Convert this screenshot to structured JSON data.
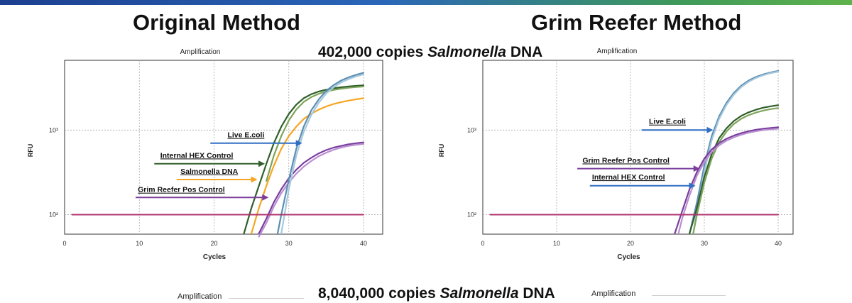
{
  "titles": {
    "left": "Original Method",
    "right": "Grim Reefer Method"
  },
  "captions": {
    "top": {
      "pre": "402,000 copies ",
      "italic": "Salmonella",
      "post": " DNA"
    },
    "bottom": {
      "pre": "8,040,000 copies ",
      "italic": "Salmonella",
      "post": " DNA"
    }
  },
  "bottom_labels": {
    "left": "Amplification",
    "right": "Amplification"
  },
  "colors": {
    "green": "#2f5f2a",
    "lightgreen": "#7ea35a",
    "orange": "#f5a623",
    "purple": "#7a3e9e",
    "lightpurple": "#b98fd0",
    "blue": "#5b8fb4",
    "lightblue": "#a8c8dc",
    "baseline": "#b0336e",
    "arrowblue": "#2e6fc4"
  },
  "chart_data": [
    {
      "type": "line",
      "title": "Amplification",
      "xlabel": "Cycles",
      "ylabel": "RFU",
      "xlim": [
        0,
        40
      ],
      "ylim": [
        60,
        5500
      ],
      "yscale": "log",
      "xticks": [
        0,
        10,
        20,
        30,
        40
      ],
      "yticks": [
        {
          "v": 100,
          "label": "10²"
        },
        {
          "v": 1000,
          "label": "10³"
        }
      ],
      "grid": true,
      "series": [
        {
          "color": "green",
          "x": [
            24,
            25,
            26,
            27,
            28,
            29,
            30,
            31,
            32,
            33,
            34,
            35,
            36,
            37,
            38,
            39,
            40
          ],
          "y": [
            60,
            120,
            220,
            400,
            700,
            1100,
            1550,
            2000,
            2380,
            2650,
            2850,
            3000,
            3120,
            3200,
            3270,
            3330,
            3380
          ]
        },
        {
          "color": "lightgreen",
          "x": [
            27,
            28,
            29,
            30,
            31,
            32,
            33,
            34,
            35,
            36,
            37,
            38,
            39,
            40
          ],
          "y": [
            250,
            500,
            850,
            1300,
            1750,
            2150,
            2450,
            2680,
            2850,
            2980,
            3080,
            3160,
            3220,
            3270
          ]
        },
        {
          "color": "orange",
          "x": [
            25,
            26,
            27,
            28,
            29,
            30,
            31,
            32,
            33,
            34,
            35,
            36,
            37,
            38,
            39,
            40
          ],
          "y": [
            60,
            120,
            220,
            380,
            600,
            850,
            1100,
            1350,
            1560,
            1740,
            1900,
            2030,
            2140,
            2230,
            2310,
            2380
          ]
        },
        {
          "color": "purple",
          "x": [
            26,
            27,
            28,
            29,
            30,
            31,
            32,
            33,
            34,
            35,
            36,
            37,
            38,
            39,
            40
          ],
          "y": [
            60,
            90,
            140,
            200,
            270,
            340,
            410,
            470,
            530,
            580,
            620,
            650,
            680,
            700,
            715
          ]
        },
        {
          "color": "lightpurple",
          "x": [
            26,
            27,
            28,
            29,
            30,
            31,
            32,
            33,
            34,
            35,
            36,
            37,
            38,
            39,
            40
          ],
          "y": [
            55,
            80,
            125,
            180,
            240,
            305,
            370,
            430,
            490,
            540,
            585,
            620,
            650,
            670,
            685
          ]
        },
        {
          "color": "blue",
          "x": [
            28.5,
            29,
            30,
            31,
            32,
            33,
            34,
            35,
            36,
            37,
            38,
            39,
            40
          ],
          "y": [
            60,
            100,
            260,
            600,
            1100,
            1700,
            2300,
            2900,
            3400,
            3850,
            4200,
            4500,
            4750
          ]
        },
        {
          "color": "lightblue",
          "x": [
            29,
            30,
            31,
            32,
            33,
            34,
            35,
            36,
            37,
            38,
            39,
            40
          ],
          "y": [
            60,
            200,
            500,
            950,
            1500,
            2100,
            2700,
            3200,
            3650,
            4000,
            4300,
            4550
          ]
        },
        {
          "color": "baseline",
          "x": [
            1,
            40
          ],
          "y": [
            100,
            100
          ]
        }
      ],
      "annotations": [
        {
          "text": "Live E.coli",
          "x0": 19.5,
          "x1": 31.8,
          "y": 700,
          "tx": 21.8,
          "ty": 820,
          "color": "arrowblue"
        },
        {
          "text": "Internal HEX Control",
          "x0": 12,
          "x1": 26.8,
          "y": 400,
          "tx": 12.8,
          "ty": 470,
          "color": "green"
        },
        {
          "text": "Salmonella DNA",
          "x0": 15,
          "x1": 25.8,
          "y": 260,
          "tx": 15.5,
          "ty": 305,
          "color": "orange"
        },
        {
          "text": "Grim Reefer Pos Control",
          "x0": 9.5,
          "x1": 27.3,
          "y": 160,
          "tx": 9.8,
          "ty": 185,
          "color": "purple"
        }
      ]
    },
    {
      "type": "line",
      "title": "Amplification",
      "xlabel": "Cycles",
      "ylabel": "RFU",
      "xlim": [
        0,
        40
      ],
      "ylim": [
        60,
        5500
      ],
      "yscale": "log",
      "xticks": [
        0,
        10,
        20,
        30,
        40
      ],
      "yticks": [
        {
          "v": 100,
          "label": "10²"
        },
        {
          "v": 1000,
          "label": "10³"
        }
      ],
      "grid": true,
      "series": [
        {
          "color": "blue",
          "x": [
            28,
            29,
            30,
            31,
            32,
            33,
            34,
            35,
            36,
            37,
            38,
            39,
            40
          ],
          "y": [
            60,
            140,
            380,
            850,
            1450,
            2100,
            2750,
            3350,
            3850,
            4250,
            4550,
            4800,
            5000
          ]
        },
        {
          "color": "lightblue",
          "x": [
            28.5,
            29,
            30,
            31,
            32,
            33,
            34,
            35,
            36,
            37,
            38,
            39,
            40
          ],
          "y": [
            60,
            110,
            320,
            760,
            1350,
            1980,
            2620,
            3220,
            3720,
            4130,
            4450,
            4700,
            4900
          ]
        },
        {
          "color": "green",
          "x": [
            28,
            29,
            30,
            31,
            32,
            33,
            34,
            35,
            36,
            37,
            38,
            39,
            40
          ],
          "y": [
            60,
            120,
            280,
            520,
            800,
            1050,
            1280,
            1470,
            1620,
            1740,
            1840,
            1910,
            1970
          ]
        },
        {
          "color": "lightgreen",
          "x": [
            28.5,
            29,
            30,
            31,
            32,
            33,
            34,
            35,
            36,
            37,
            38,
            39,
            40
          ],
          "y": [
            60,
            100,
            240,
            460,
            720,
            960,
            1180,
            1360,
            1500,
            1610,
            1700,
            1770,
            1820
          ]
        },
        {
          "color": "purple",
          "x": [
            26,
            27,
            28,
            29,
            30,
            31,
            32,
            33,
            34,
            35,
            36,
            37,
            38,
            39,
            40
          ],
          "y": [
            60,
            110,
            200,
            320,
            460,
            590,
            700,
            790,
            860,
            920,
            970,
            1010,
            1040,
            1060,
            1080
          ]
        },
        {
          "color": "lightpurple",
          "x": [
            26.5,
            27,
            28,
            29,
            30,
            31,
            32,
            33,
            34,
            35,
            36,
            37,
            38,
            39,
            40
          ],
          "y": [
            60,
            90,
            170,
            290,
            420,
            550,
            660,
            750,
            820,
            880,
            930,
            970,
            1000,
            1020,
            1040
          ]
        },
        {
          "color": "baseline",
          "x": [
            1,
            40
          ],
          "y": [
            100,
            100
          ]
        }
      ],
      "annotations": [
        {
          "text": "Live E.coli",
          "x0": 21.5,
          "x1": 31.2,
          "y": 1000,
          "tx": 22.5,
          "ty": 1180,
          "color": "arrowblue"
        },
        {
          "text": "Grim Reefer Pos Control",
          "x0": 12.8,
          "x1": 29.4,
          "y": 350,
          "tx": 13.5,
          "ty": 410,
          "color": "purple"
        },
        {
          "text": "Internal HEX Control",
          "x0": 14.5,
          "x1": 28.8,
          "y": 220,
          "tx": 14.8,
          "ty": 260,
          "color": "arrowblue"
        }
      ]
    }
  ]
}
